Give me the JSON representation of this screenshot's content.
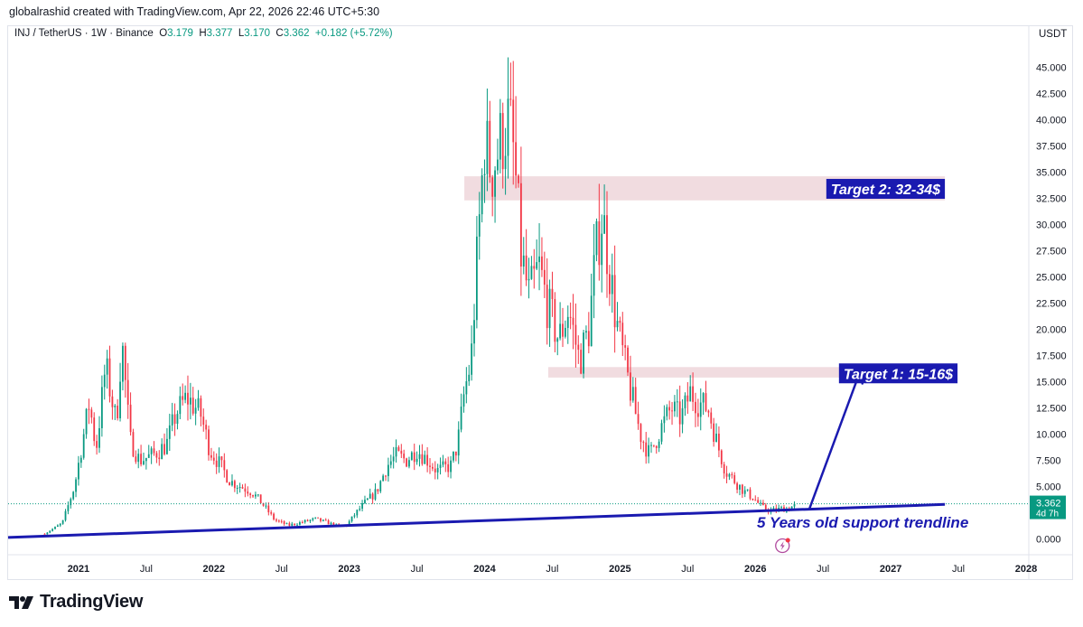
{
  "attribution": "globalrashid created with TradingView.com, Apr 22, 2026 22:46 UTC+5:30",
  "legend": {
    "symbol": "INJ / TetherUS · 1W · Binance",
    "o_label": "O",
    "o": "3.179",
    "h_label": "H",
    "h": "3.377",
    "l_label": "L",
    "l": "3.170",
    "c_label": "C",
    "c": "3.362",
    "change": "+0.182 (+5.72%)"
  },
  "axis_unit": "USDT",
  "price_badge": {
    "value": "3.362",
    "countdown": "4d 7h"
  },
  "footer": {
    "brand": "TradingView"
  },
  "annotations": {
    "target2": "Target 2: 32-34$",
    "target1": "Target 1: 15-16$",
    "trendline": "5 Years old support trendline"
  },
  "colors": {
    "up": "#089981",
    "down": "#f23645",
    "zone": "#eed6da",
    "annotation": "#1a1ab0"
  },
  "chart_data": {
    "type": "candlestick",
    "symbol": "INJ / TetherUS",
    "interval": "1W",
    "ylim": [
      -1.5,
      49
    ],
    "y_ticks": [
      0,
      2.5,
      5,
      7.5,
      10,
      12.5,
      15,
      17.5,
      20,
      22.5,
      25,
      27.5,
      30,
      32.5,
      35,
      37.5,
      40,
      42.5,
      45
    ],
    "y_tick_labels": [
      "0.000",
      "2.500",
      "5.000",
      "7.500",
      "10.000",
      "12.500",
      "15.000",
      "17.500",
      "20.000",
      "22.500",
      "25.000",
      "27.500",
      "30.000",
      "32.500",
      "35.000",
      "37.500",
      "40.000",
      "42.500",
      "45.000"
    ],
    "x_ticks": [
      {
        "t": 2021.0,
        "label": "2021",
        "bold": true
      },
      {
        "t": 2021.5,
        "label": "Jul"
      },
      {
        "t": 2022.0,
        "label": "2022",
        "bold": true
      },
      {
        "t": 2022.5,
        "label": "Jul"
      },
      {
        "t": 2023.0,
        "label": "2023",
        "bold": true
      },
      {
        "t": 2023.5,
        "label": "Jul"
      },
      {
        "t": 2024.0,
        "label": "2024",
        "bold": true
      },
      {
        "t": 2024.5,
        "label": "Jul"
      },
      {
        "t": 2025.0,
        "label": "2025",
        "bold": true
      },
      {
        "t": 2025.5,
        "label": "Jul"
      },
      {
        "t": 2026.0,
        "label": "2026",
        "bold": true
      },
      {
        "t": 2026.5,
        "label": "Jul"
      },
      {
        "t": 2027.0,
        "label": "2027",
        "bold": true
      },
      {
        "t": 2027.5,
        "label": "Jul"
      },
      {
        "t": 2028.0,
        "label": "2028",
        "bold": true
      }
    ],
    "x_range": [
      2020.48,
      2028.02
    ],
    "last_price": 3.362,
    "zones": [
      {
        "label": "Target 2: 32-34$",
        "t0": 2023.85,
        "t1": 2027.4,
        "y0": 32.3,
        "y1": 34.6
      },
      {
        "label": "Target 1: 15-16$",
        "t0": 2024.47,
        "t1": 2027.4,
        "y0": 15.4,
        "y1": 16.4
      }
    ],
    "trendline": {
      "t0": 2020.48,
      "y0": 0.15,
      "t1": 2027.4,
      "y1": 3.3
    },
    "arrow": {
      "t0": 2026.4,
      "y0": 2.9,
      "t1": 2026.78,
      "y1": 16.2
    },
    "price_path": [
      [
        2020.75,
        0.5
      ],
      [
        2020.88,
        1.5
      ],
      [
        2020.97,
        5.0
      ],
      [
        2021.08,
        13.0
      ],
      [
        2021.13,
        8.5
      ],
      [
        2021.2,
        16.5
      ],
      [
        2021.28,
        11.0
      ],
      [
        2021.32,
        19.0
      ],
      [
        2021.38,
        9.5
      ],
      [
        2021.45,
        7.5
      ],
      [
        2021.55,
        8.0
      ],
      [
        2021.65,
        9.0
      ],
      [
        2021.72,
        12.0
      ],
      [
        2021.8,
        13.5
      ],
      [
        2021.9,
        12.0
      ],
      [
        2021.97,
        8.5
      ],
      [
        2022.05,
        7.0
      ],
      [
        2022.12,
        5.5
      ],
      [
        2022.2,
        5.0
      ],
      [
        2022.28,
        4.5
      ],
      [
        2022.35,
        3.5
      ],
      [
        2022.45,
        1.8
      ],
      [
        2022.55,
        1.3
      ],
      [
        2022.65,
        1.6
      ],
      [
        2022.75,
        1.9
      ],
      [
        2022.83,
        1.6
      ],
      [
        2022.92,
        1.2
      ],
      [
        2022.98,
        1.3
      ],
      [
        2023.05,
        2.5
      ],
      [
        2023.12,
        3.5
      ],
      [
        2023.2,
        4.5
      ],
      [
        2023.28,
        7.0
      ],
      [
        2023.35,
        8.0
      ],
      [
        2023.42,
        7.5
      ],
      [
        2023.5,
        8.5
      ],
      [
        2023.58,
        7.5
      ],
      [
        2023.65,
        6.5
      ],
      [
        2023.75,
        7.0
      ],
      [
        2023.8,
        9.0
      ],
      [
        2023.85,
        14.0
      ],
      [
        2023.9,
        17.0
      ],
      [
        2023.95,
        28.0
      ],
      [
        2024.0,
        38.0
      ],
      [
        2024.05,
        35.0
      ],
      [
        2024.12,
        38.0
      ],
      [
        2024.18,
        40.0
      ],
      [
        2024.22,
        36.0
      ],
      [
        2024.27,
        27.0
      ],
      [
        2024.33,
        23.0
      ],
      [
        2024.4,
        26.0
      ],
      [
        2024.47,
        22.0
      ],
      [
        2024.55,
        19.0
      ],
      [
        2024.62,
        22.0
      ],
      [
        2024.7,
        17.0
      ],
      [
        2024.77,
        20.0
      ],
      [
        2024.82,
        27.0
      ],
      [
        2024.87,
        31.0
      ],
      [
        2024.92,
        26.0
      ],
      [
        2024.97,
        21.0
      ],
      [
        2025.03,
        17.0
      ],
      [
        2025.08,
        14.0
      ],
      [
        2025.15,
        10.0
      ],
      [
        2025.22,
        8.0
      ],
      [
        2025.3,
        10.5
      ],
      [
        2025.38,
        12.5
      ],
      [
        2025.45,
        11.5
      ],
      [
        2025.52,
        14.0
      ],
      [
        2025.58,
        13.0
      ],
      [
        2025.65,
        12.5
      ],
      [
        2025.72,
        9.0
      ],
      [
        2025.78,
        6.5
      ],
      [
        2025.85,
        5.5
      ],
      [
        2025.92,
        4.5
      ],
      [
        2025.98,
        4.0
      ],
      [
        2026.05,
        3.0
      ],
      [
        2026.12,
        2.7
      ],
      [
        2026.2,
        2.9
      ],
      [
        2026.25,
        2.9
      ],
      [
        2026.3,
        3.36
      ]
    ]
  }
}
